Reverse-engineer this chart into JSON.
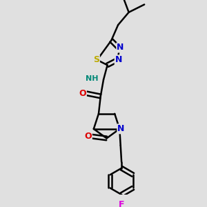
{
  "bg_color": "#e0e0e0",
  "bond_color": "#000000",
  "bond_width": 1.8,
  "atom_colors": {
    "N": "#0000cc",
    "O": "#dd0000",
    "S": "#bbaa00",
    "F": "#dd00dd",
    "C": "#000000",
    "H": "#008877"
  },
  "font_size": 8.5,
  "figsize": [
    3.0,
    3.0
  ],
  "dpi": 100,
  "xlim": [
    0,
    10
  ],
  "ylim": [
    0,
    10
  ]
}
